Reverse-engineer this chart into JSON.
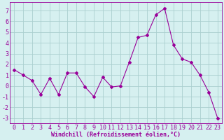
{
  "x": [
    0,
    1,
    2,
    3,
    4,
    5,
    6,
    7,
    8,
    9,
    10,
    11,
    12,
    13,
    14,
    15,
    16,
    17,
    18,
    19,
    20,
    21,
    22,
    23
  ],
  "y": [
    1.5,
    1.0,
    0.5,
    -0.8,
    0.7,
    -0.8,
    1.2,
    1.2,
    -0.1,
    -1.0,
    0.8,
    -0.1,
    0.0,
    2.2,
    4.5,
    4.7,
    6.6,
    7.2,
    3.8,
    2.5,
    2.2,
    1.0,
    -0.6,
    -3.0
  ],
  "line_color": "#990099",
  "marker": "D",
  "marker_size": 2,
  "bg_color": "#d6f0f0",
  "grid_color": "#aacfcf",
  "xlabel": "Windchill (Refroidissement éolien,°C)",
  "xlabel_fontsize": 6.0,
  "tick_fontsize": 6.0,
  "xlim": [
    -0.5,
    23.5
  ],
  "ylim": [
    -3.5,
    7.8
  ],
  "yticks": [
    -3,
    -2,
    -1,
    0,
    1,
    2,
    3,
    4,
    5,
    6,
    7
  ],
  "xticks": [
    0,
    1,
    2,
    3,
    4,
    5,
    6,
    7,
    8,
    9,
    10,
    11,
    12,
    13,
    14,
    15,
    16,
    17,
    18,
    19,
    20,
    21,
    22,
    23
  ]
}
